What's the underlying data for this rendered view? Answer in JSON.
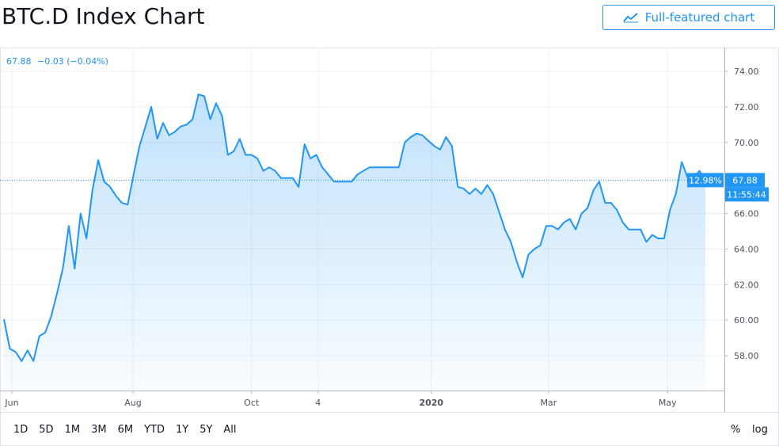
{
  "header": {
    "title": "BTC.D Index Chart",
    "button": "Full-featured chart"
  },
  "chart_data": {
    "type": "line",
    "legend_text": "67.88",
    "change_text": "−0.03 (−0.04%)",
    "price_tag_pct": "12.98%",
    "price_tag_time": "11:55:44",
    "series": [
      {
        "name": "BTC.D",
        "color": "#2196f3",
        "values": [
          60.05,
          58.4,
          58.2,
          57.7,
          58.3,
          57.7,
          59.1,
          59.3,
          60.2,
          61.5,
          62.9,
          65.3,
          62.9,
          66.0,
          64.6,
          67.3,
          69.0,
          67.8,
          67.5,
          67.0,
          66.6,
          66.5,
          68.2,
          69.8,
          70.9,
          72.0,
          70.2,
          71.1,
          70.4,
          70.6,
          70.9,
          71.0,
          71.3,
          72.7,
          72.6,
          71.3,
          72.2,
          71.5,
          69.3,
          69.5,
          70.2,
          69.3,
          69.3,
          69.1,
          68.4,
          68.6,
          68.4,
          68.0,
          68.0,
          68.0,
          67.5,
          69.9,
          69.1,
          69.3,
          68.6,
          68.2,
          67.8,
          67.8,
          67.8,
          67.8,
          68.2,
          68.4,
          68.6,
          68.6,
          68.6,
          68.6,
          68.6,
          68.6,
          70.0,
          70.3,
          70.5,
          70.4,
          70.1,
          69.8,
          69.6,
          70.3,
          69.8,
          67.5,
          67.4,
          67.1,
          67.4,
          67.1,
          67.6,
          67.1,
          66.1,
          65.1,
          64.4,
          63.3,
          62.4,
          63.7,
          64.0,
          64.2,
          65.3,
          65.3,
          65.1,
          65.5,
          65.7,
          65.1,
          66.0,
          66.3,
          67.3,
          67.8,
          66.6,
          66.6,
          66.2,
          65.5,
          65.1,
          65.1,
          65.1,
          64.4,
          64.8,
          64.6,
          64.6,
          66.2,
          67.1,
          68.9,
          68.0,
          68.0,
          68.4,
          67.88
        ]
      }
    ],
    "xlim": [
      -0.67,
      122.23
    ],
    "xticks": [
      {
        "value": 1.34,
        "label": "Jun"
      },
      {
        "value": 21.9,
        "label": "Aug"
      },
      {
        "value": 42.0,
        "label": "Oct"
      },
      {
        "value": 53.3,
        "label": "4"
      },
      {
        "value": 72.5,
        "label": "2020"
      },
      {
        "value": 92.4,
        "label": "Mar"
      },
      {
        "value": 112.6,
        "label": "May"
      }
    ],
    "ylim": [
      56.04,
      75.34
    ],
    "yticks": [
      {
        "value": 58,
        "label": "58.00"
      },
      {
        "value": 60,
        "label": "60.00"
      },
      {
        "value": 62,
        "label": "62.00"
      },
      {
        "value": 64,
        "label": "64.00"
      },
      {
        "value": 66,
        "label": "66.00"
      },
      {
        "value": 68,
        "label": "68.00"
      },
      {
        "value": 70,
        "label": "70.00"
      },
      {
        "value": 72,
        "label": "72.00"
      },
      {
        "value": 74,
        "label": "74.00"
      }
    ],
    "grid": true,
    "log_scale": false,
    "ranges": [
      "1D",
      "5D",
      "1M",
      "3M",
      "6M",
      "YTD",
      "1Y",
      "5Y",
      "All"
    ],
    "scale_buttons": [
      "%",
      "log"
    ]
  }
}
